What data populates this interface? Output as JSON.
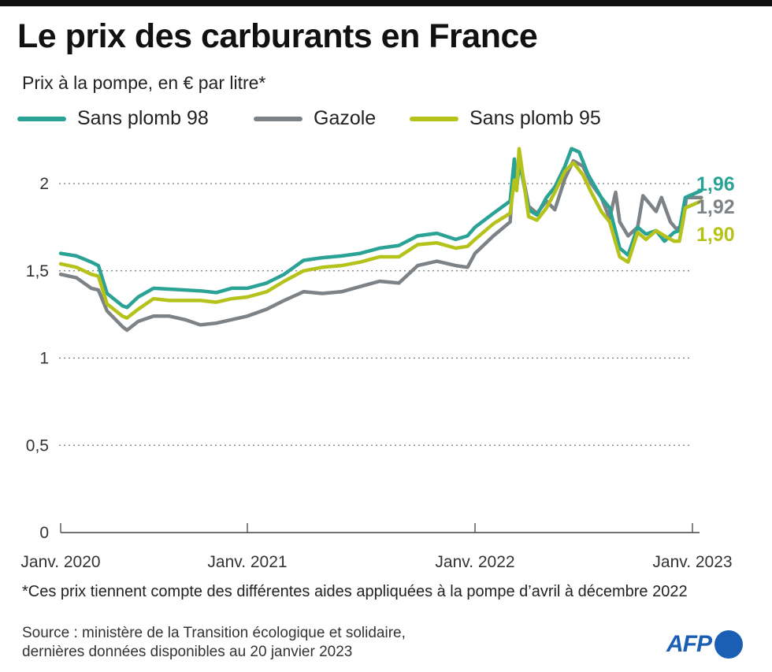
{
  "title": "Le prix des carburants en France",
  "subtitle": "Prix à la pompe, en € par litre*",
  "note": "*Ces prix tiennent compte des différentes aides appliquées à la pompe d’avril à décembre 2022",
  "source_line1": "Source : ministère de la Transition écologique et solidaire,",
  "source_line2": "dernières données disponibles au 20 janvier 2023",
  "logo": "AFP",
  "chart_data": {
    "type": "line",
    "title": "Le prix des carburants en France",
    "ylabel": "Prix à la pompe, en € par litre*",
    "ylim": [
      0,
      2.25
    ],
    "yticks": [
      {
        "v": 0,
        "label": "0"
      },
      {
        "v": 0.5,
        "label": "0,5"
      },
      {
        "v": 1,
        "label": "1"
      },
      {
        "v": 1.5,
        "label": "1,5"
      },
      {
        "v": 2,
        "label": "2"
      }
    ],
    "xticks": [
      {
        "date": "2020-01-01",
        "label": "Janv. 2020"
      },
      {
        "date": "2021-01-01",
        "label": "Janv. 2021"
      },
      {
        "date": "2022-01-01",
        "label": "Janv. 2022"
      },
      {
        "date": "2023-01-01",
        "label": "Janv. 2023"
      }
    ],
    "grid": "horizontal dotted",
    "legend_placement": "top",
    "series": [
      {
        "name": "Sans plomb 98",
        "color": "#2aa396",
        "end_label": "1,96",
        "points": [
          [
            "2020-01-01",
            1.6
          ],
          [
            "2020-02-01",
            1.585
          ],
          [
            "2020-03-01",
            1.55
          ],
          [
            "2020-03-15",
            1.53
          ],
          [
            "2020-04-01",
            1.37
          ],
          [
            "2020-05-01",
            1.3
          ],
          [
            "2020-05-10",
            1.29
          ],
          [
            "2020-06-01",
            1.35
          ],
          [
            "2020-07-01",
            1.4
          ],
          [
            "2020-08-01",
            1.395
          ],
          [
            "2020-09-01",
            1.39
          ],
          [
            "2020-10-01",
            1.385
          ],
          [
            "2020-11-01",
            1.375
          ],
          [
            "2020-12-01",
            1.4
          ],
          [
            "2021-01-01",
            1.4
          ],
          [
            "2021-02-01",
            1.43
          ],
          [
            "2021-03-01",
            1.48
          ],
          [
            "2021-04-01",
            1.56
          ],
          [
            "2021-05-01",
            1.575
          ],
          [
            "2021-06-01",
            1.585
          ],
          [
            "2021-07-01",
            1.6
          ],
          [
            "2021-08-01",
            1.63
          ],
          [
            "2021-09-01",
            1.645
          ],
          [
            "2021-10-01",
            1.7
          ],
          [
            "2021-11-01",
            1.715
          ],
          [
            "2021-12-01",
            1.68
          ],
          [
            "2021-12-20",
            1.7
          ],
          [
            "2022-01-01",
            1.75
          ],
          [
            "2022-02-01",
            1.83
          ],
          [
            "2022-03-01",
            1.9
          ],
          [
            "2022-03-08",
            2.14
          ],
          [
            "2022-03-12",
            1.98
          ],
          [
            "2022-03-17",
            2.12
          ],
          [
            "2022-04-01",
            1.85
          ],
          [
            "2022-04-15",
            1.82
          ],
          [
            "2022-05-01",
            1.92
          ],
          [
            "2022-05-15",
            1.98
          ],
          [
            "2022-06-01",
            2.1
          ],
          [
            "2022-06-12",
            2.2
          ],
          [
            "2022-06-25",
            2.18
          ],
          [
            "2022-07-10",
            2.05
          ],
          [
            "2022-08-01",
            1.92
          ],
          [
            "2022-08-15",
            1.86
          ],
          [
            "2022-09-01",
            1.63
          ],
          [
            "2022-09-15",
            1.59
          ],
          [
            "2022-10-01",
            1.75
          ],
          [
            "2022-10-15",
            1.71
          ],
          [
            "2022-11-01",
            1.73
          ],
          [
            "2022-11-15",
            1.67
          ],
          [
            "2022-12-01",
            1.72
          ],
          [
            "2022-12-10",
            1.73
          ],
          [
            "2022-12-20",
            1.92
          ],
          [
            "2023-01-16",
            1.96
          ]
        ]
      },
      {
        "name": "Gazole",
        "color": "#7d8287",
        "end_label": "1,92",
        "points": [
          [
            "2020-01-01",
            1.48
          ],
          [
            "2020-02-01",
            1.46
          ],
          [
            "2020-03-01",
            1.4
          ],
          [
            "2020-03-15",
            1.39
          ],
          [
            "2020-04-01",
            1.27
          ],
          [
            "2020-05-01",
            1.18
          ],
          [
            "2020-05-10",
            1.16
          ],
          [
            "2020-06-01",
            1.21
          ],
          [
            "2020-07-01",
            1.24
          ],
          [
            "2020-08-01",
            1.24
          ],
          [
            "2020-09-01",
            1.22
          ],
          [
            "2020-10-01",
            1.19
          ],
          [
            "2020-11-01",
            1.2
          ],
          [
            "2020-12-01",
            1.22
          ],
          [
            "2021-01-01",
            1.24
          ],
          [
            "2021-02-01",
            1.28
          ],
          [
            "2021-03-01",
            1.33
          ],
          [
            "2021-04-01",
            1.38
          ],
          [
            "2021-05-01",
            1.37
          ],
          [
            "2021-06-01",
            1.38
          ],
          [
            "2021-07-01",
            1.41
          ],
          [
            "2021-08-01",
            1.44
          ],
          [
            "2021-09-01",
            1.43
          ],
          [
            "2021-10-01",
            1.53
          ],
          [
            "2021-11-01",
            1.555
          ],
          [
            "2021-12-01",
            1.53
          ],
          [
            "2021-12-20",
            1.52
          ],
          [
            "2022-01-01",
            1.6
          ],
          [
            "2022-02-01",
            1.7
          ],
          [
            "2022-03-01",
            1.78
          ],
          [
            "2022-03-08",
            2.14
          ],
          [
            "2022-03-12",
            1.98
          ],
          [
            "2022-03-17",
            2.14
          ],
          [
            "2022-04-01",
            1.87
          ],
          [
            "2022-04-15",
            1.83
          ],
          [
            "2022-05-01",
            1.9
          ],
          [
            "2022-05-15",
            1.85
          ],
          [
            "2022-06-01",
            2.03
          ],
          [
            "2022-06-15",
            2.13
          ],
          [
            "2022-07-01",
            2.1
          ],
          [
            "2022-07-15",
            2.0
          ],
          [
            "2022-08-01",
            1.92
          ],
          [
            "2022-08-15",
            1.8
          ],
          [
            "2022-08-25",
            1.95
          ],
          [
            "2022-09-01",
            1.78
          ],
          [
            "2022-09-15",
            1.7
          ],
          [
            "2022-10-01",
            1.75
          ],
          [
            "2022-10-10",
            1.93
          ],
          [
            "2022-11-01",
            1.84
          ],
          [
            "2022-11-10",
            1.92
          ],
          [
            "2022-11-25",
            1.78
          ],
          [
            "2022-12-05",
            1.74
          ],
          [
            "2022-12-15",
            1.76
          ],
          [
            "2022-12-22",
            1.92
          ],
          [
            "2023-01-16",
            1.92
          ]
        ]
      },
      {
        "name": "Sans plomb 95",
        "color": "#b5c21a",
        "end_label": "1,90",
        "points": [
          [
            "2020-01-01",
            1.54
          ],
          [
            "2020-02-01",
            1.52
          ],
          [
            "2020-03-01",
            1.48
          ],
          [
            "2020-03-15",
            1.47
          ],
          [
            "2020-04-01",
            1.31
          ],
          [
            "2020-05-01",
            1.24
          ],
          [
            "2020-05-10",
            1.23
          ],
          [
            "2020-06-01",
            1.28
          ],
          [
            "2020-07-01",
            1.34
          ],
          [
            "2020-08-01",
            1.33
          ],
          [
            "2020-09-01",
            1.33
          ],
          [
            "2020-10-01",
            1.33
          ],
          [
            "2020-11-01",
            1.32
          ],
          [
            "2020-12-01",
            1.34
          ],
          [
            "2021-01-01",
            1.35
          ],
          [
            "2021-02-01",
            1.38
          ],
          [
            "2021-03-01",
            1.44
          ],
          [
            "2021-04-01",
            1.5
          ],
          [
            "2021-05-01",
            1.52
          ],
          [
            "2021-06-01",
            1.53
          ],
          [
            "2021-07-01",
            1.55
          ],
          [
            "2021-08-01",
            1.58
          ],
          [
            "2021-09-01",
            1.58
          ],
          [
            "2021-10-01",
            1.65
          ],
          [
            "2021-11-01",
            1.66
          ],
          [
            "2021-12-01",
            1.63
          ],
          [
            "2021-12-20",
            1.64
          ],
          [
            "2022-01-01",
            1.68
          ],
          [
            "2022-02-01",
            1.77
          ],
          [
            "2022-03-01",
            1.83
          ],
          [
            "2022-03-08",
            2.02
          ],
          [
            "2022-03-12",
            1.96
          ],
          [
            "2022-03-16",
            2.2
          ],
          [
            "2022-04-01",
            1.81
          ],
          [
            "2022-04-15",
            1.79
          ],
          [
            "2022-05-01",
            1.86
          ],
          [
            "2022-05-15",
            1.95
          ],
          [
            "2022-06-01",
            2.07
          ],
          [
            "2022-06-15",
            2.12
          ],
          [
            "2022-07-01",
            2.05
          ],
          [
            "2022-07-15",
            1.95
          ],
          [
            "2022-08-01",
            1.84
          ],
          [
            "2022-08-15",
            1.78
          ],
          [
            "2022-09-01",
            1.58
          ],
          [
            "2022-09-15",
            1.55
          ],
          [
            "2022-10-01",
            1.72
          ],
          [
            "2022-10-15",
            1.68
          ],
          [
            "2022-11-01",
            1.73
          ],
          [
            "2022-11-15",
            1.7
          ],
          [
            "2022-12-01",
            1.67
          ],
          [
            "2022-12-10",
            1.67
          ],
          [
            "2022-12-20",
            1.86
          ],
          [
            "2023-01-16",
            1.9
          ]
        ]
      }
    ]
  }
}
